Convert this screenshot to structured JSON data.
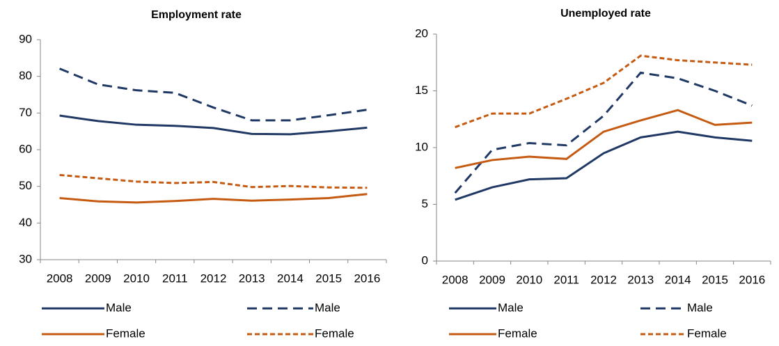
{
  "chart_data": [
    {
      "type": "line",
      "title": "Employment rate",
      "categories": [
        "2008",
        "2009",
        "2010",
        "2011",
        "2012",
        "2013",
        "2014",
        "2015",
        "2016"
      ],
      "ylim": [
        30,
        90
      ],
      "yticks": [
        30,
        40,
        50,
        60,
        70,
        80,
        90
      ],
      "grid": false,
      "legend": "bottom",
      "series": [
        {
          "name": "Male",
          "color": "#203864",
          "dash": "solid",
          "values": [
            69.3,
            67.8,
            66.8,
            66.5,
            65.9,
            64.3,
            64.2,
            65.0,
            66.0
          ]
        },
        {
          "name": "Male",
          "color": "#203864",
          "dash": "dashed",
          "values": [
            82.1,
            77.8,
            76.2,
            75.5,
            71.5,
            68.0,
            68.0,
            69.4,
            70.9
          ]
        },
        {
          "name": "Female",
          "color": "#c55a11",
          "dash": "solid",
          "values": [
            46.8,
            45.9,
            45.6,
            46.0,
            46.6,
            46.1,
            46.4,
            46.8,
            47.9
          ]
        },
        {
          "name": "Female",
          "color": "#c55a11",
          "dash": "dotted",
          "values": [
            53.1,
            52.2,
            51.3,
            50.9,
            51.2,
            49.8,
            50.1,
            49.7,
            49.6
          ]
        }
      ]
    },
    {
      "type": "line",
      "title": "Unemployed rate",
      "categories": [
        "2008",
        "2009",
        "2010",
        "2011",
        "2012",
        "2013",
        "2014",
        "2015",
        "2016"
      ],
      "ylim": [
        0,
        20
      ],
      "yticks": [
        0,
        5,
        10,
        15,
        20
      ],
      "grid": false,
      "legend": "bottom",
      "series": [
        {
          "name": "Male",
          "color": "#203864",
          "dash": "solid",
          "values": [
            5.4,
            6.5,
            7.2,
            7.3,
            9.5,
            10.9,
            11.4,
            10.9,
            10.6
          ]
        },
        {
          "name": "Male",
          "color": "#203864",
          "dash": "dashed",
          "values": [
            6.0,
            9.8,
            10.4,
            10.2,
            12.8,
            16.6,
            16.1,
            15.0,
            13.7
          ]
        },
        {
          "name": "Female",
          "color": "#c55a11",
          "dash": "solid",
          "values": [
            8.2,
            8.9,
            9.2,
            9.0,
            11.4,
            12.4,
            13.3,
            12.0,
            12.2
          ]
        },
        {
          "name": "Female",
          "color": "#c55a11",
          "dash": "dotted",
          "values": [
            11.8,
            13.0,
            13.0,
            14.3,
            15.7,
            18.1,
            17.7,
            17.5,
            17.3
          ]
        }
      ]
    }
  ]
}
